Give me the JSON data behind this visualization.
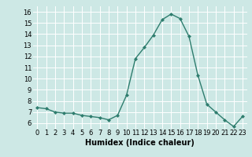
{
  "x": [
    0,
    1,
    2,
    3,
    4,
    5,
    6,
    7,
    8,
    9,
    10,
    11,
    12,
    13,
    14,
    15,
    16,
    17,
    18,
    19,
    20,
    21,
    22,
    23
  ],
  "y": [
    7.4,
    7.3,
    7.0,
    6.9,
    6.9,
    6.7,
    6.6,
    6.5,
    6.3,
    6.7,
    8.5,
    11.8,
    12.8,
    13.9,
    15.3,
    15.8,
    15.4,
    13.8,
    10.3,
    7.7,
    7.0,
    6.3,
    5.7,
    6.6
  ],
  "xlabel": "Humidex (Indice chaleur)",
  "ylim": [
    5.5,
    16.5
  ],
  "xlim": [
    -0.5,
    23.5
  ],
  "yticks": [
    6,
    7,
    8,
    9,
    10,
    11,
    12,
    13,
    14,
    15,
    16
  ],
  "xticks": [
    0,
    1,
    2,
    3,
    4,
    5,
    6,
    7,
    8,
    9,
    10,
    11,
    12,
    13,
    14,
    15,
    16,
    17,
    18,
    19,
    20,
    21,
    22,
    23
  ],
  "line_color": "#2e7d6e",
  "marker_color": "#2e7d6e",
  "bg_color": "#cde8e5",
  "grid_color": "#ffffff",
  "label_fontsize": 7,
  "tick_fontsize": 6
}
